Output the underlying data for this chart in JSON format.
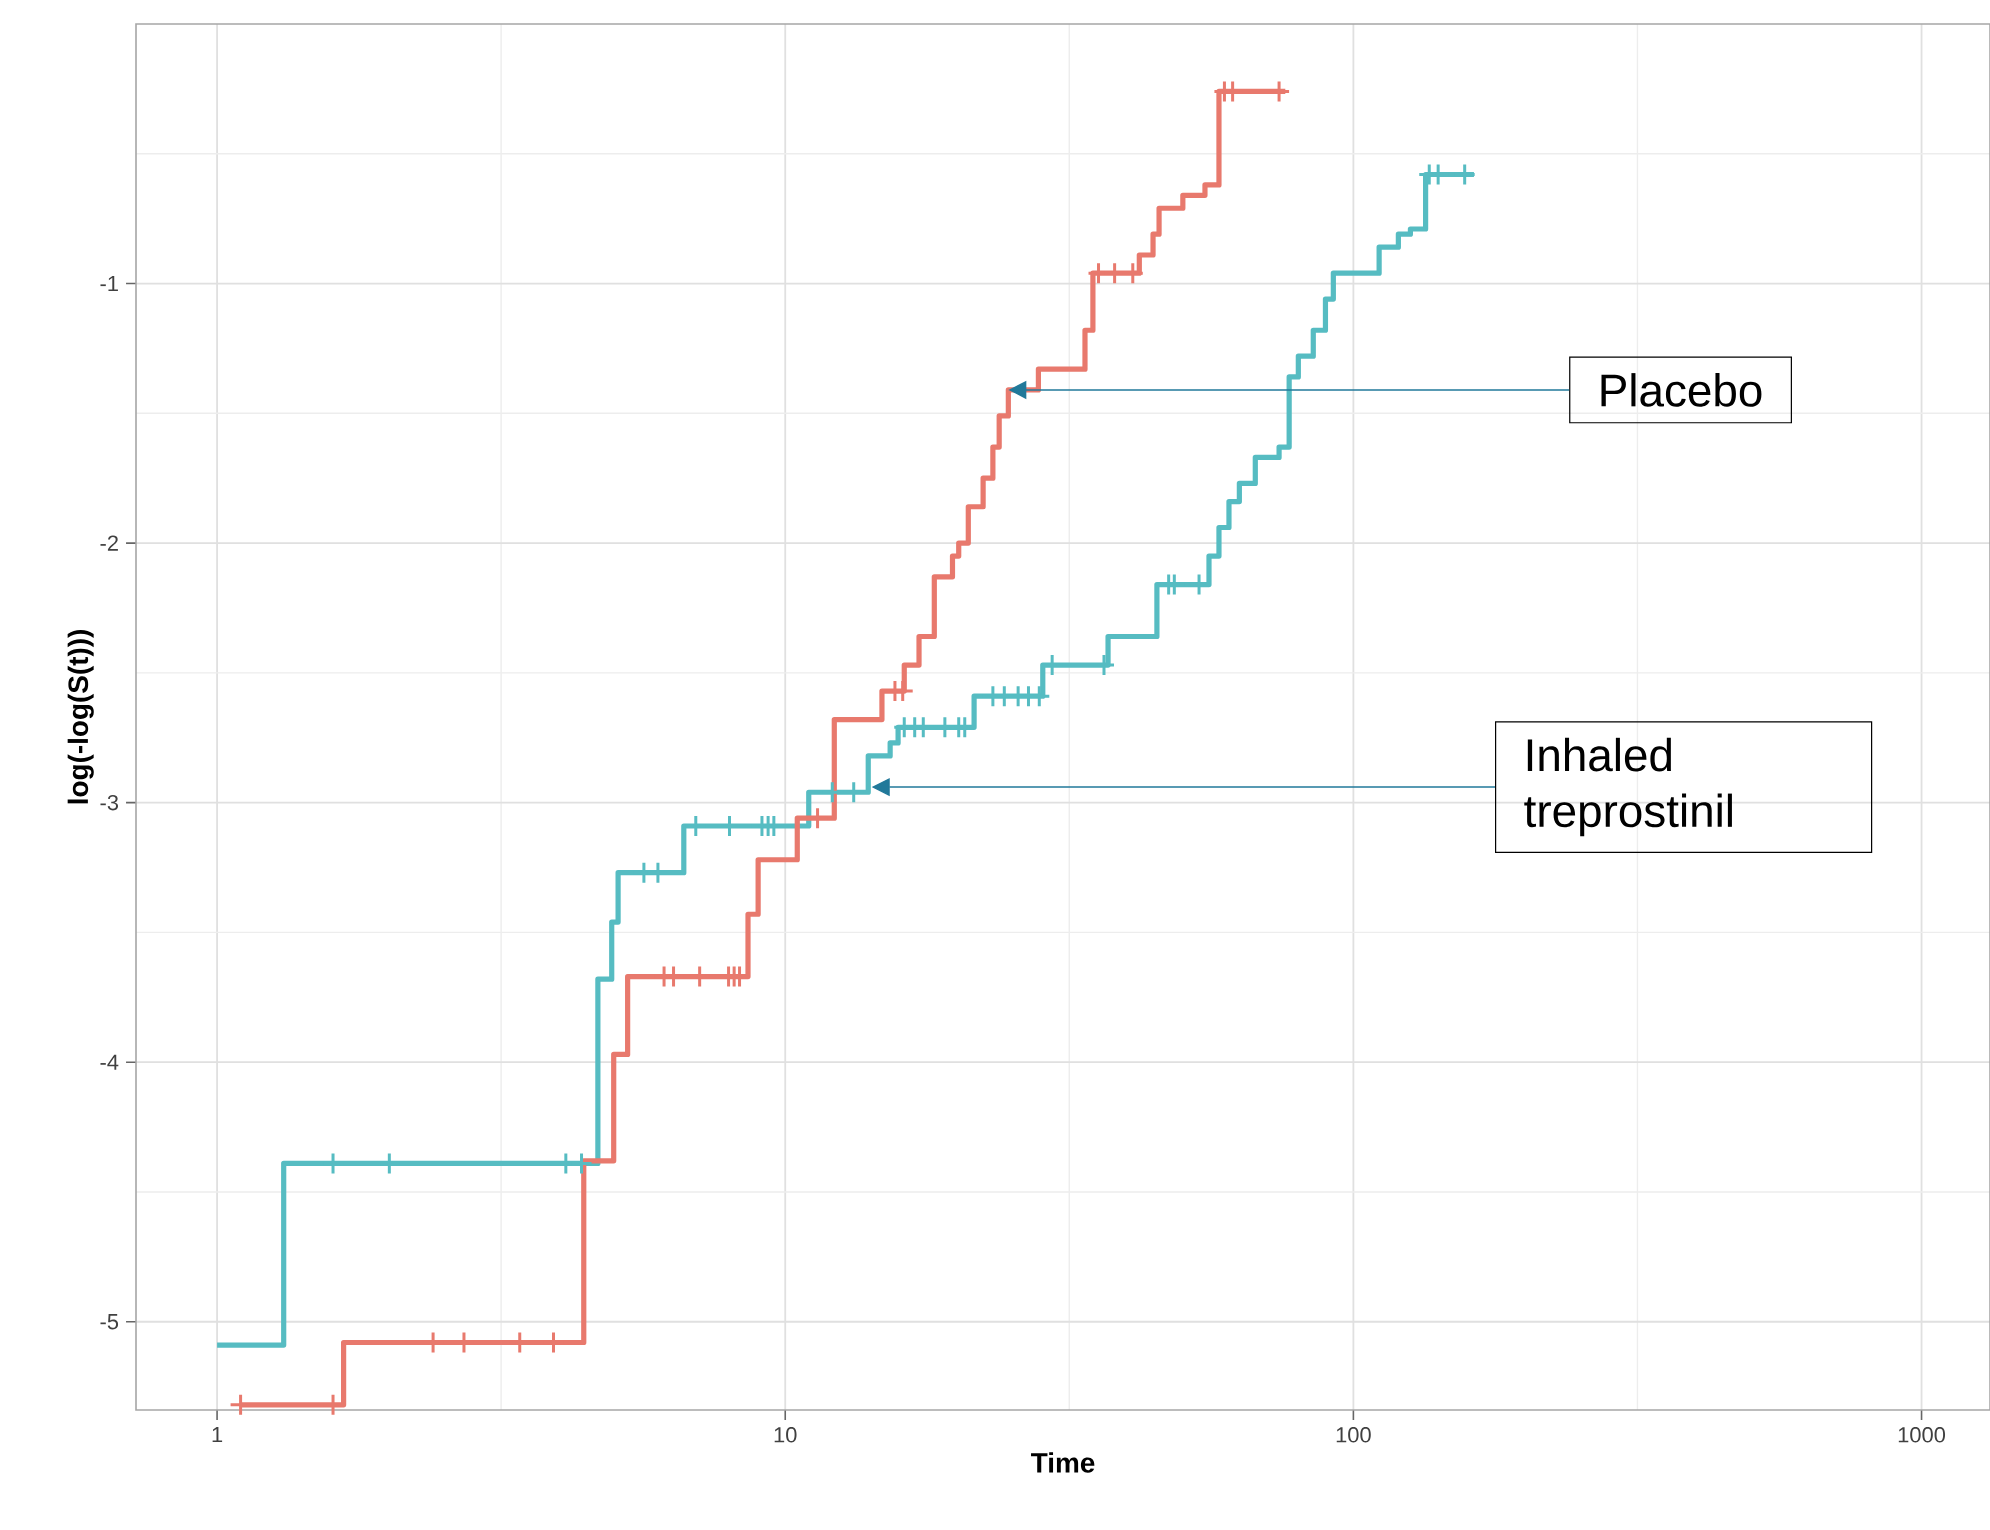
{
  "chart_data": {
    "type": "step",
    "xlabel": "Time",
    "ylabel": "log(-log(S(t)))",
    "log": "x",
    "grid": true,
    "xlim": [
      0.72,
      1320
    ],
    "ylim": [
      -5.34,
      0
    ],
    "xticks": [
      1,
      10,
      100,
      1000
    ],
    "yticks": [
      -5,
      -4,
      -3,
      -2,
      -1
    ],
    "series": [
      {
        "color": "#56bcc2",
        "x": [
          1.0,
          1.31,
          4.68,
          4.95,
          5.08,
          6.63,
          11.0,
          14.0,
          15.3,
          15.8,
          21.5,
          28.4,
          37,
          45.1,
          55.7,
          58,
          60.4,
          63,
          67.2,
          74,
          77.1,
          80,
          85,
          89.3,
          92.2,
          111,
          120,
          126,
          134,
          163
        ],
        "values": [
          -5.09,
          -4.39,
          -3.68,
          -3.46,
          -3.27,
          -3.09,
          -2.96,
          -2.82,
          -2.77,
          -2.71,
          -2.59,
          -2.47,
          -2.36,
          -2.16,
          -2.05,
          -1.94,
          -1.84,
          -1.77,
          -1.67,
          -1.63,
          -1.36,
          -1.28,
          -1.18,
          -1.06,
          -0.96,
          -0.86,
          -0.81,
          -0.79,
          -0.58,
          -0.58
        ]
      },
      {
        "color": "#e8796d",
        "x": [
          1.1,
          1.67,
          4.42,
          4.99,
          5.28,
          8.6,
          8.96,
          10.5,
          12.2,
          14.8,
          16.2,
          17.2,
          18.3,
          19.7,
          20.2,
          21.0,
          22.3,
          23.2,
          23.8,
          24.7,
          27.9,
          33.7,
          34.8,
          42.0,
          44.4,
          45.5,
          50.1,
          54.8,
          58.0,
          75.9
        ],
        "values": [
          -5.32,
          -5.08,
          -4.38,
          -3.97,
          -3.67,
          -3.43,
          -3.22,
          -3.06,
          -2.68,
          -2.57,
          -2.47,
          -2.36,
          -2.13,
          -2.05,
          -2.0,
          -1.86,
          -1.75,
          -1.63,
          -1.51,
          -1.41,
          -1.33,
          -1.18,
          -0.96,
          -0.89,
          -0.81,
          -0.71,
          -0.66,
          -0.62,
          -0.26,
          -0.26
        ]
      },
      {
        "type": "scatter",
        "marker": "cross",
        "color": "#56bcc2",
        "x": [
          1.6,
          2.01,
          4.11,
          4.38,
          5.64,
          5.97,
          6.96,
          7.98,
          9.1,
          9.33,
          9.55,
          12.1,
          13.2,
          16.2,
          16.9,
          17.5,
          19.1,
          20.2,
          20.7,
          23.2,
          24.3,
          25.7,
          26.8,
          28.0,
          29.5,
          36.4,
          47.3,
          48.4,
          53.5,
          136,
          141,
          157
        ],
        "values": [
          -4.39,
          -4.39,
          -4.39,
          -4.39,
          -3.27,
          -3.27,
          -3.09,
          -3.09,
          -3.09,
          -3.09,
          -3.09,
          -2.96,
          -2.96,
          -2.71,
          -2.71,
          -2.71,
          -2.71,
          -2.71,
          -2.71,
          -2.59,
          -2.59,
          -2.59,
          -2.59,
          -2.59,
          -2.47,
          -2.47,
          -2.16,
          -2.16,
          -2.16,
          -0.58,
          -0.58,
          -0.58
        ]
      },
      {
        "type": "scatter",
        "marker": "cross",
        "color": "#e8796d",
        "x": [
          1.1,
          1.6,
          2.4,
          2.72,
          3.41,
          3.91,
          6.12,
          6.36,
          7.07,
          7.95,
          8.13,
          8.31,
          11.4,
          15.6,
          16.1,
          35.6,
          38.0,
          40.9,
          59.3,
          61.3,
          74.0
        ],
        "values": [
          -5.32,
          -5.32,
          -5.08,
          -5.08,
          -5.08,
          -5.08,
          -3.67,
          -3.67,
          -3.67,
          -3.67,
          -3.67,
          -3.67,
          -3.06,
          -2.57,
          -2.57,
          -0.96,
          -0.96,
          -0.96,
          -0.26,
          -0.26,
          -0.26
        ]
      }
    ],
    "annotations": [
      {
        "text": "Placebo",
        "x": 24.7,
        "y": -1.41
      },
      {
        "text": "Inhaled treprostinil",
        "x": 14.2,
        "y": -2.94
      }
    ]
  }
}
